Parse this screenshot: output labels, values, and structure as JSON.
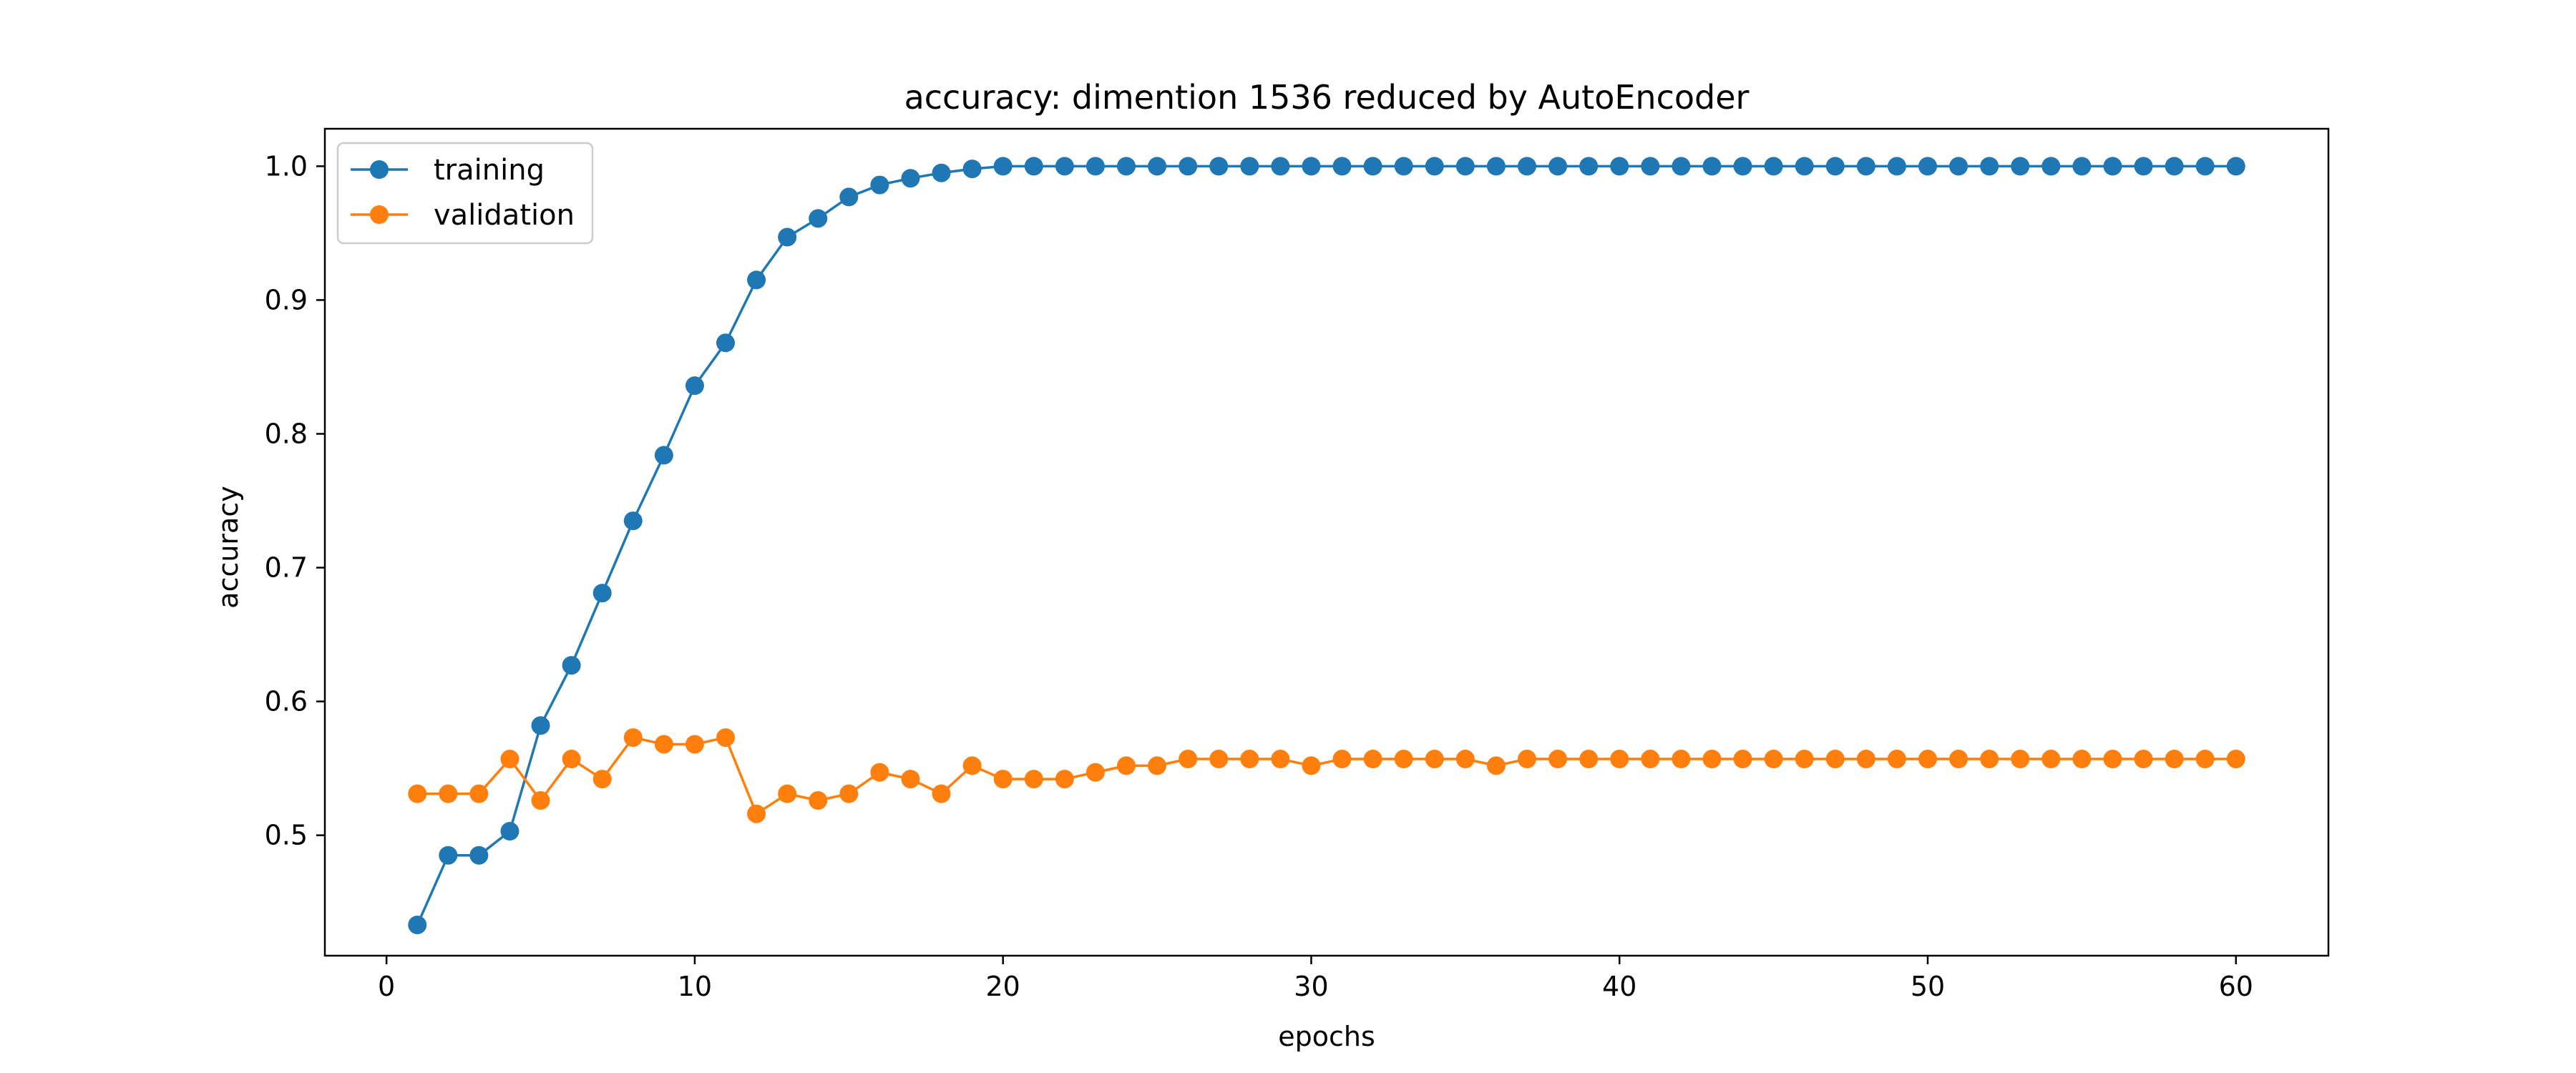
{
  "chart_data": {
    "type": "line",
    "title": "accuracy: dimention 1536 reduced by AutoEncoder",
    "xlabel": "epochs",
    "ylabel": "accuracy",
    "xlim": [
      -2,
      63
    ],
    "ylim": [
      0.41,
      1.028
    ],
    "xticks": [
      0,
      10,
      20,
      30,
      40,
      50,
      60
    ],
    "yticks": [
      0.5,
      0.6,
      0.7,
      0.8,
      0.9,
      1.0
    ],
    "ytick_labels": [
      "0.5",
      "0.6",
      "0.7",
      "0.8",
      "0.9",
      "1.0"
    ],
    "grid": false,
    "legend": {
      "placement": "upper-left",
      "entries": [
        "training",
        "validation"
      ]
    },
    "x": [
      1,
      2,
      3,
      4,
      5,
      6,
      7,
      8,
      9,
      10,
      11,
      12,
      13,
      14,
      15,
      16,
      17,
      18,
      19,
      20,
      21,
      22,
      23,
      24,
      25,
      26,
      27,
      28,
      29,
      30,
      31,
      32,
      33,
      34,
      35,
      36,
      37,
      38,
      39,
      40,
      41,
      42,
      43,
      44,
      45,
      46,
      47,
      48,
      49,
      50,
      51,
      52,
      53,
      54,
      55,
      56,
      57,
      58,
      59,
      60
    ],
    "series": [
      {
        "name": "training",
        "color": "#1f77b4",
        "marker": "circle",
        "values": [
          0.433,
          0.485,
          0.485,
          0.503,
          0.582,
          0.627,
          0.681,
          0.735,
          0.784,
          0.836,
          0.868,
          0.915,
          0.947,
          0.961,
          0.977,
          0.986,
          0.991,
          0.995,
          0.998,
          1.0,
          1.0,
          1.0,
          1.0,
          1.0,
          1.0,
          1.0,
          1.0,
          1.0,
          1.0,
          1.0,
          1.0,
          1.0,
          1.0,
          1.0,
          1.0,
          1.0,
          1.0,
          1.0,
          1.0,
          1.0,
          1.0,
          1.0,
          1.0,
          1.0,
          1.0,
          1.0,
          1.0,
          1.0,
          1.0,
          1.0,
          1.0,
          1.0,
          1.0,
          1.0,
          1.0,
          1.0,
          1.0,
          1.0,
          1.0,
          1.0
        ]
      },
      {
        "name": "validation",
        "color": "#ff7f0e",
        "marker": "circle",
        "values": [
          0.531,
          0.531,
          0.531,
          0.557,
          0.526,
          0.557,
          0.542,
          0.573,
          0.568,
          0.568,
          0.573,
          0.516,
          0.531,
          0.526,
          0.531,
          0.547,
          0.542,
          0.531,
          0.552,
          0.542,
          0.542,
          0.542,
          0.547,
          0.552,
          0.552,
          0.557,
          0.557,
          0.557,
          0.557,
          0.552,
          0.557,
          0.557,
          0.557,
          0.557,
          0.557,
          0.552,
          0.557,
          0.557,
          0.557,
          0.557,
          0.557,
          0.557,
          0.557,
          0.557,
          0.557,
          0.557,
          0.557,
          0.557,
          0.557,
          0.557,
          0.557,
          0.557,
          0.557,
          0.557,
          0.557,
          0.557,
          0.557,
          0.557,
          0.557,
          0.557
        ]
      }
    ]
  }
}
